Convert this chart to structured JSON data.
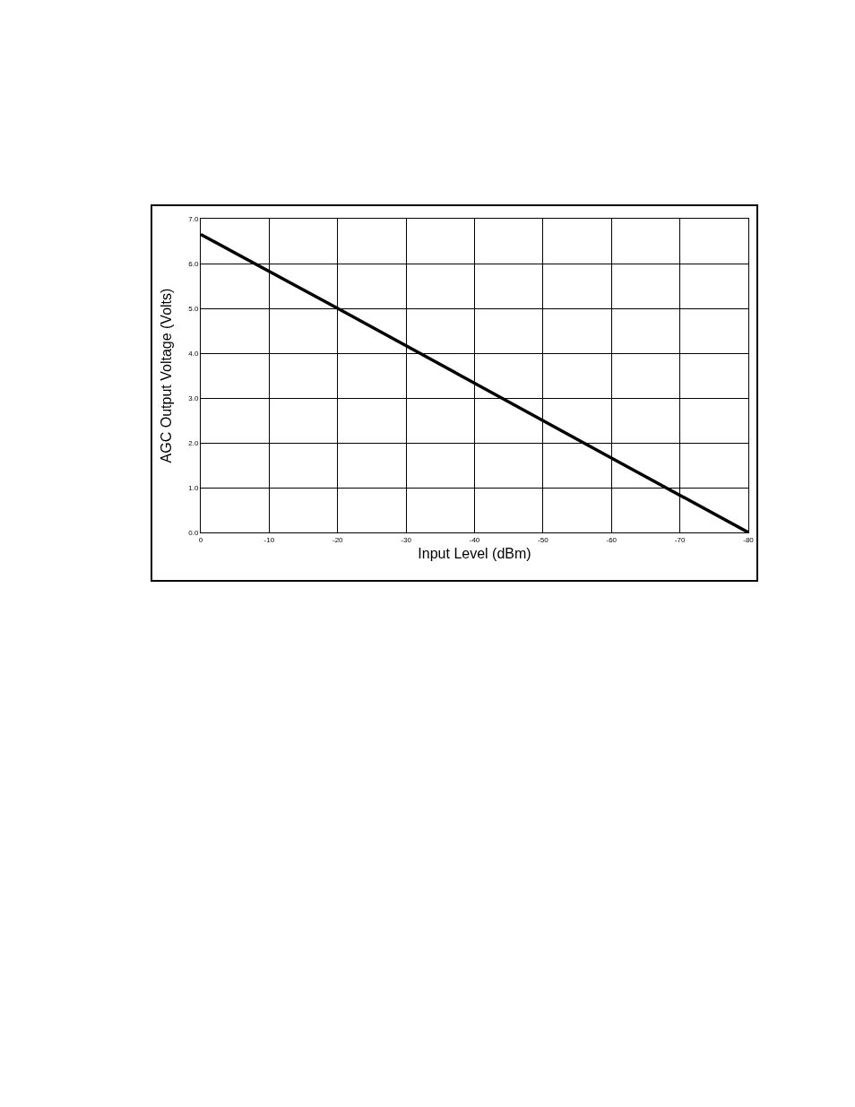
{
  "chart_data": {
    "type": "line",
    "xlabel": "Input Level (dBm)",
    "ylabel": "AGC Output Voltage (Volts)",
    "x": [
      0,
      -20,
      -40,
      -60,
      -80
    ],
    "series": [
      {
        "color": "#000000",
        "values": [
          6.65,
          5.0,
          3.33,
          1.66,
          0.0
        ]
      }
    ],
    "xlim": [
      0,
      -80
    ],
    "xticks": [
      0,
      -10,
      -20,
      -30,
      -40,
      -50,
      -60,
      -70,
      -80
    ],
    "ylim": [
      0,
      7
    ],
    "yticks": [
      {
        "value": 0,
        "label": "0.0"
      },
      {
        "value": 1,
        "label": "1.0"
      },
      {
        "value": 2,
        "label": "2.0"
      },
      {
        "value": 3,
        "label": "3.0"
      },
      {
        "value": 4,
        "label": "4.0"
      },
      {
        "value": 5,
        "label": "5.0"
      },
      {
        "value": 6,
        "label": "6.0"
      },
      {
        "value": 7,
        "label": "7.0"
      }
    ],
    "grid": true,
    "marker": "none",
    "line_style": "solid"
  }
}
